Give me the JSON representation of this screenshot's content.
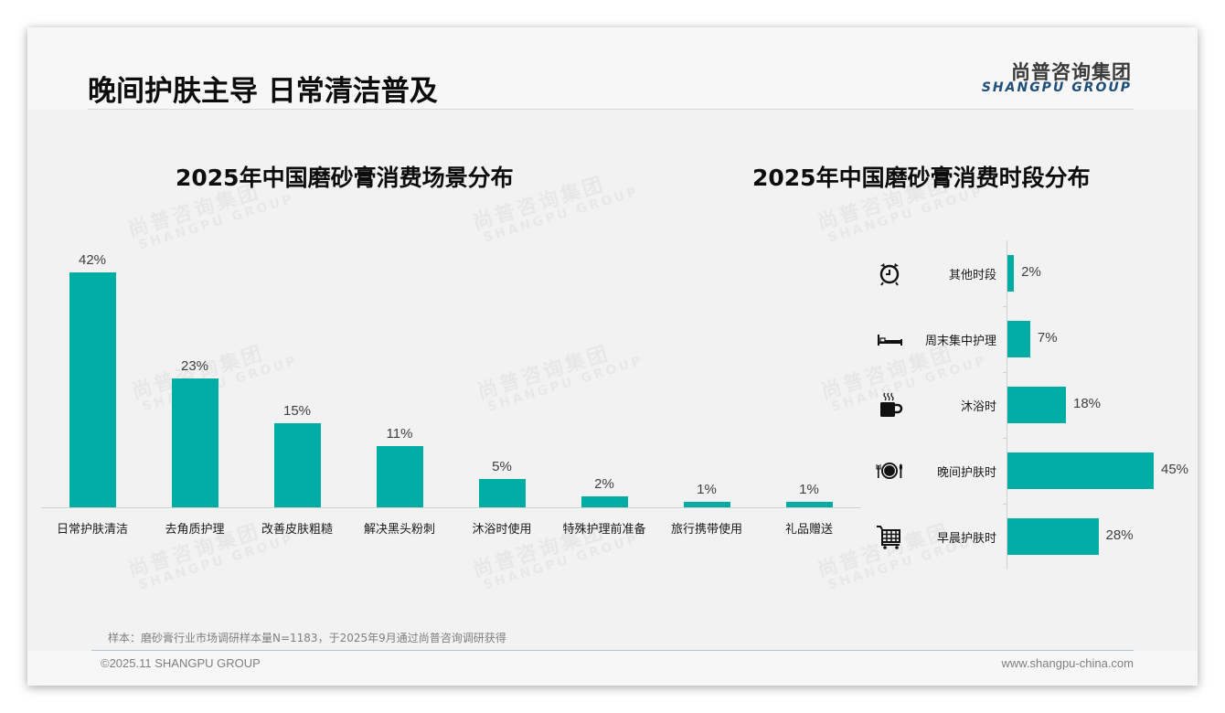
{
  "header": {
    "title": "晚间护肤主导 日常清洁普及",
    "logo_cn": "尚普咨询集团",
    "logo_en": "SHANGPU GROUP"
  },
  "watermark": {
    "cn": "尚普咨询集团",
    "en": "SHANGPU GROUP"
  },
  "colors": {
    "bar": "#00ada4",
    "title": "#0d0d0d",
    "logo_en": "#1f4e79",
    "footer_text": "#7f7f7f"
  },
  "chart_data": [
    {
      "type": "bar",
      "title": "2025年中国磨砂膏消费场景分布",
      "categories": [
        "日常护肤清洁",
        "去角质护理",
        "改善皮肤粗糙",
        "解决黑头粉刺",
        "沐浴时使用",
        "特殊护理前准备",
        "旅行携带使用",
        "礼品赠送"
      ],
      "values": [
        42,
        23,
        15,
        11,
        5,
        2,
        1,
        1
      ],
      "labels": [
        "42%",
        "23%",
        "15%",
        "11%",
        "5%",
        "2%",
        "1%",
        "1%"
      ],
      "unit": "%",
      "xlabel": "",
      "ylabel": "",
      "grid": false,
      "legend": null
    },
    {
      "type": "bar",
      "orientation": "horizontal",
      "title": "2025年中国磨砂膏消费时段分布",
      "categories": [
        "其他时段",
        "周末集中护理",
        "沐浴时",
        "晚间护肤时",
        "早晨护肤时"
      ],
      "values": [
        2,
        7,
        18,
        45,
        28
      ],
      "labels": [
        "2%",
        "7%",
        "18%",
        "45%",
        "28%"
      ],
      "icons": [
        "alarm-clock-icon",
        "bed-icon",
        "coffee-cup-icon",
        "dinner-plate-icon",
        "shopping-cart-icon"
      ],
      "unit": "%",
      "xlabel": "",
      "ylabel": "",
      "grid": false,
      "legend": null
    }
  ],
  "footer": {
    "source": "样本：磨砂膏行业市场调研样本量N=1183，于2025年9月通过尚普咨询调研获得",
    "copyright": "©2025.11 SHANGPU GROUP",
    "website": "www.shangpu-china.com"
  }
}
